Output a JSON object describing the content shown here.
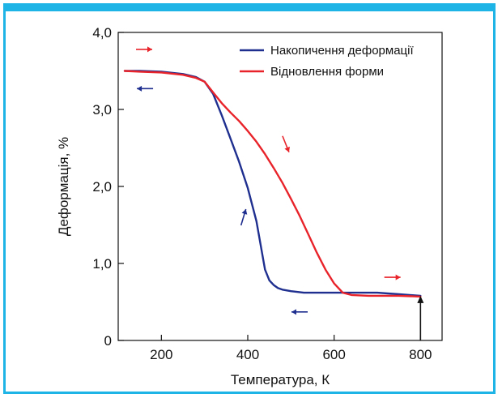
{
  "chart_data": {
    "type": "line",
    "xlabel": "Температура, К",
    "ylabel": "Деформація, %",
    "xlim": [
      100,
      850
    ],
    "ylim": [
      0,
      4.0
    ],
    "x_ticks": [
      200,
      400,
      600,
      800
    ],
    "x_tick_labels": [
      "200",
      "400",
      "600",
      "800"
    ],
    "y_ticks": [
      0,
      1.0,
      2.0,
      3.0,
      4.0
    ],
    "y_tick_labels": [
      "0",
      "1,0",
      "2,0",
      "3,0",
      "4,0"
    ],
    "legend_position": "top-right",
    "grid": false,
    "series": [
      {
        "name": "Накопичення деформації",
        "color": "#1f2f8f",
        "x": [
          115,
          150,
          200,
          250,
          280,
          300,
          320,
          340,
          360,
          380,
          400,
          420,
          440,
          450,
          460,
          470,
          480,
          500,
          530,
          600,
          700,
          750,
          800
        ],
        "y": [
          3.5,
          3.5,
          3.49,
          3.46,
          3.42,
          3.36,
          3.2,
          2.92,
          2.62,
          2.32,
          1.98,
          1.55,
          0.92,
          0.78,
          0.72,
          0.68,
          0.66,
          0.64,
          0.62,
          0.62,
          0.62,
          0.6,
          0.58
        ]
      },
      {
        "name": "Відновлення форми",
        "color": "#e8232a",
        "x": [
          115,
          150,
          200,
          250,
          280,
          300,
          320,
          340,
          360,
          380,
          400,
          420,
          440,
          460,
          480,
          500,
          520,
          540,
          560,
          580,
          600,
          620,
          640,
          680,
          750,
          800
        ],
        "y": [
          3.5,
          3.49,
          3.48,
          3.45,
          3.41,
          3.36,
          3.22,
          3.08,
          2.96,
          2.85,
          2.72,
          2.58,
          2.42,
          2.24,
          2.05,
          1.84,
          1.62,
          1.38,
          1.14,
          0.92,
          0.74,
          0.62,
          0.59,
          0.58,
          0.58,
          0.57
        ]
      }
    ],
    "annotations": [
      {
        "type": "arrow",
        "color": "#e8232a",
        "direction": "right",
        "x": 160,
        "y": 3.78
      },
      {
        "type": "arrow",
        "color": "#1f2f8f",
        "direction": "left",
        "x": 162,
        "y": 3.27
      },
      {
        "type": "arrow",
        "color": "#e8232a",
        "direction": "down",
        "x": 488,
        "y": 2.55
      },
      {
        "type": "arrow",
        "color": "#1f2f8f",
        "direction": "up",
        "x": 390,
        "y": 1.6
      },
      {
        "type": "arrow",
        "color": "#e8232a",
        "direction": "right",
        "x": 735,
        "y": 0.82
      },
      {
        "type": "arrow",
        "color": "#1f2f8f",
        "direction": "left",
        "x": 520,
        "y": 0.37
      },
      {
        "type": "arrow",
        "color": "#111111",
        "direction": "up",
        "x": 800,
        "y": 0.3
      }
    ]
  }
}
